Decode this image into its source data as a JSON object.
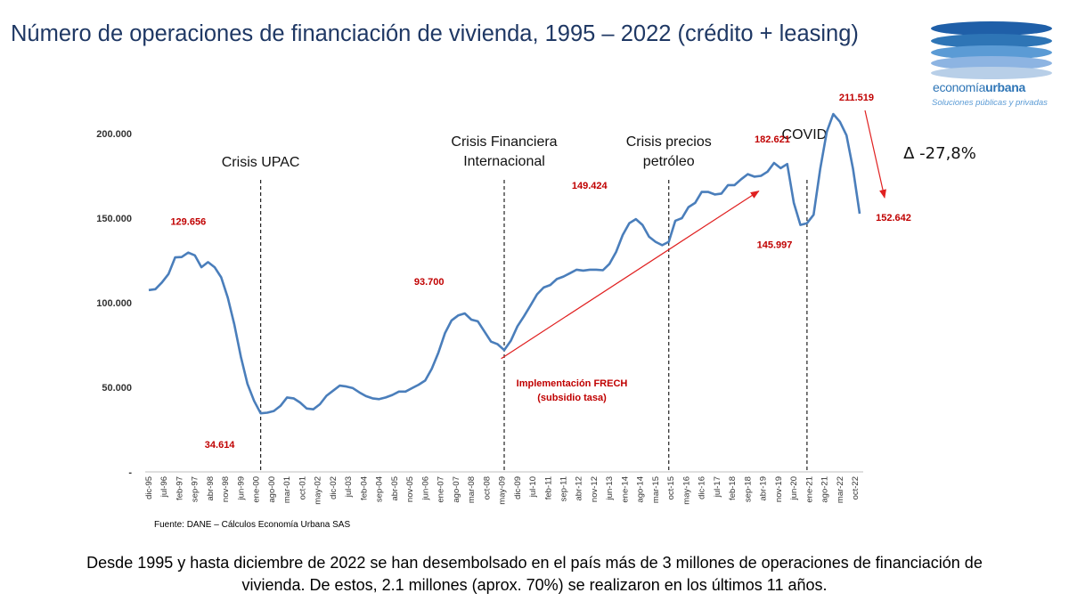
{
  "title": "Número de operaciones de financiación de vivienda, 1995 – 2022 (crédito + leasing)",
  "logo": {
    "brand_part1": "economía",
    "brand_part2": "urbana",
    "tagline": "Soluciones públicas y privadas"
  },
  "source": "Fuente:  DANE  – Cálculos Economía Urbana SAS",
  "footer": {
    "line1": "Desde 1995 y hasta diciembre de 2022 se han desembolsado en el país más de 3 millones de operaciones de financiación de",
    "line2": "vivienda. De estos, 2.1 millones (aprox. 70%) se realizaron en los últimos 11 años."
  },
  "colors": {
    "line": "#4a7ebb",
    "annotation": "#c00000",
    "arrow": "#e02020",
    "title": "#1f3864",
    "axis": "#333333"
  },
  "chart_data": {
    "type": "line",
    "title": "Número de operaciones de financiación de vivienda, 1995 – 2022 (crédito + leasing)",
    "ylim": [
      0,
      220000
    ],
    "y_ticks": [
      0,
      50000,
      100000,
      150000,
      200000
    ],
    "y_tick_labels": [
      "-",
      "50.000",
      "100.000",
      "150.000",
      "200.000"
    ],
    "x_tick_labels": [
      "dic-95",
      "jul-96",
      "feb-97",
      "sep-97",
      "abr-98",
      "nov-98",
      "jun-99",
      "ene-00",
      "ago-00",
      "mar-01",
      "oct-01",
      "may-02",
      "dic-02",
      "jul-03",
      "feb-04",
      "sep-04",
      "abr-05",
      "nov-05",
      "jun-06",
      "ene-07",
      "ago-07",
      "mar-08",
      "oct-08",
      "may-09",
      "dic-09",
      "jul-10",
      "feb-11",
      "sep-11",
      "abr-12",
      "nov-12",
      "jun-13",
      "ene-14",
      "ago-14",
      "mar-15",
      "oct-15",
      "may-16",
      "dic-16",
      "jul-17",
      "feb-18",
      "sep-18",
      "abr-19",
      "nov-19",
      "jun-20",
      "ene-21",
      "ago-21",
      "mar-22",
      "oct-22"
    ],
    "series": [
      {
        "values": [
          107500,
          108000,
          112000,
          117000,
          126800,
          127000,
          129656,
          128000,
          121000,
          124000,
          121000,
          115000,
          103000,
          87000,
          68000,
          52000,
          42000,
          34614,
          35000,
          36000,
          39000,
          44000,
          43500,
          41000,
          37500,
          37000,
          40000,
          45000,
          48000,
          51000,
          50500,
          49500,
          47000,
          44800,
          43500,
          43000,
          44000,
          45500,
          47500,
          47500,
          49500,
          51500,
          54000,
          61000,
          70500,
          82000,
          89500,
          92500,
          93700,
          90000,
          89000,
          83000,
          77000,
          75500,
          72000,
          77500,
          86000,
          92000,
          98500,
          105000,
          109000,
          110500,
          114000,
          115500,
          117500,
          119500,
          119000,
          119500,
          119500,
          119200,
          123000,
          130000,
          140000,
          147000,
          149424,
          146000,
          139000,
          136000,
          134000,
          136000,
          148500,
          150000,
          156500,
          159000,
          165500,
          165500,
          164000,
          164500,
          169500,
          169500,
          173000,
          176000,
          174500,
          175000,
          177500,
          182621,
          179500,
          182000,
          159000,
          146000,
          147000,
          152000,
          179000,
          201000,
          211519,
          207000,
          199000,
          179000,
          152642
        ]
      }
    ],
    "events": [
      {
        "label": "Crisis UPAC",
        "x_index": 17
      },
      {
        "label": "Crisis Financiera\nInternacional",
        "x_index": 54
      },
      {
        "label": "Crisis precios\npetróleo",
        "x_index": 79
      },
      {
        "label": "COVID",
        "x_index": 100
      }
    ],
    "annotations": [
      {
        "text": "129.656",
        "x_index": 6
      },
      {
        "text": "34.614",
        "x_index": 17
      },
      {
        "text": "93.700",
        "x_index": 48
      },
      {
        "text": "149.424",
        "x_index": 74
      },
      {
        "text": "182.621",
        "x_index": 95
      },
      {
        "text": "145.997",
        "x_index": 99
      },
      {
        "text": "211.519",
        "x_index": 104
      },
      {
        "text": "152.642",
        "x_index": 108
      }
    ],
    "frech_label": "Implementación FRECH\n(subsidio tasa)",
    "change_label": "Δ -27,8%"
  }
}
